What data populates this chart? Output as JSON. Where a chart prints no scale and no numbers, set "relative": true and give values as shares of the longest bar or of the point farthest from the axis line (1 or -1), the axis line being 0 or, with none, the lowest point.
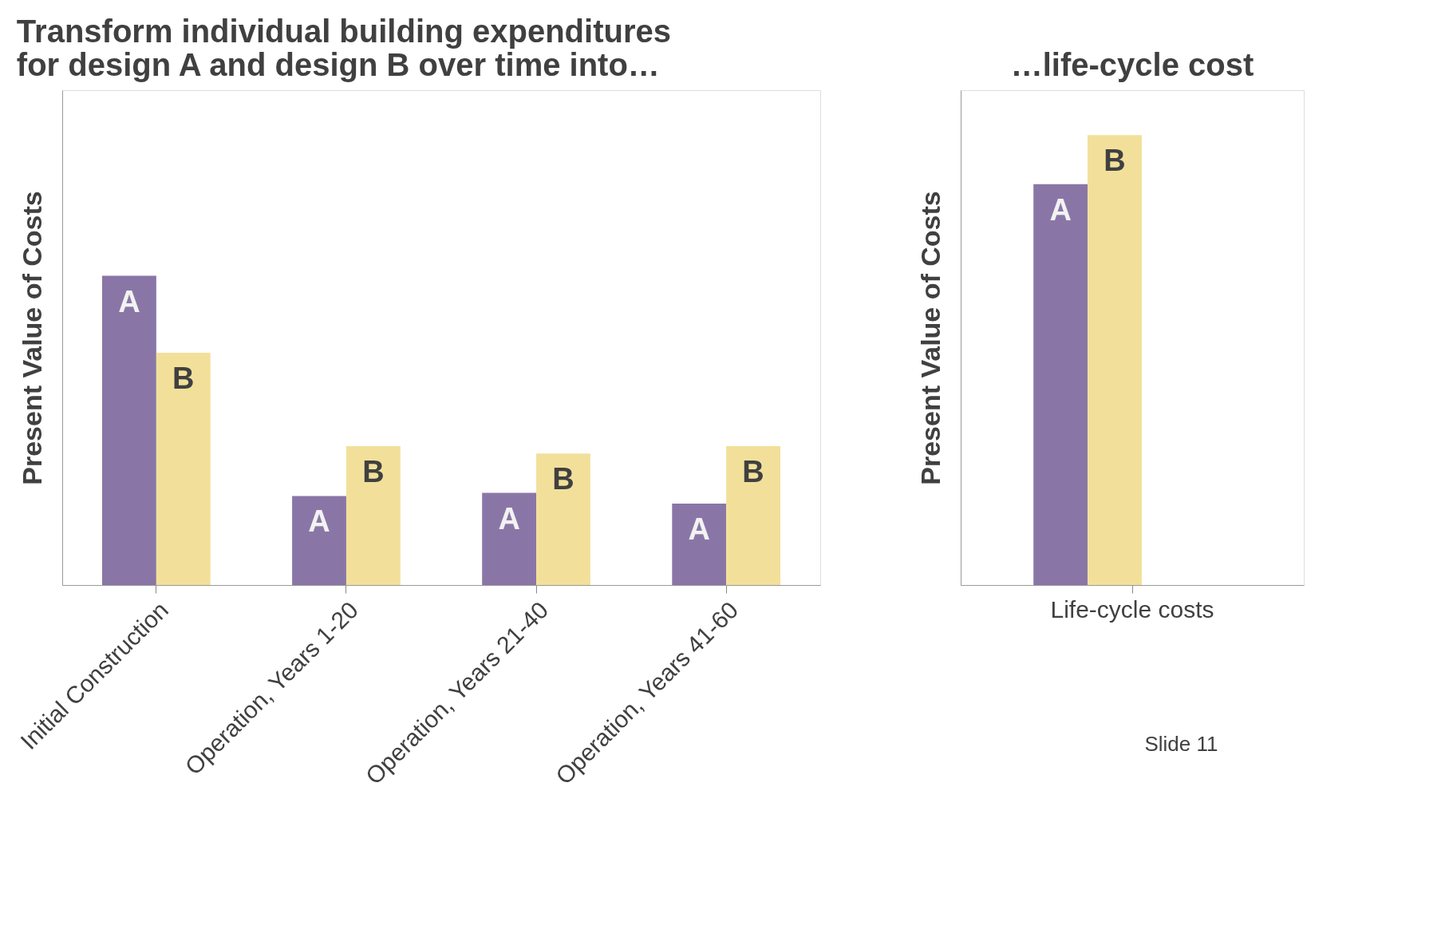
{
  "chart_data": [
    {
      "type": "bar",
      "title": [
        "Transform individual building expenditures",
        "for design A and design B over time into…"
      ],
      "ylabel": "Present Value of Costs",
      "relative": true,
      "categories": [
        "Initial Construction",
        "Operation, Years 1-20",
        "Operation, Years 21-40",
        "Operation, Years 41-60"
      ],
      "series": [
        {
          "name": "A",
          "color": "#8a76a6",
          "values": [
            1.0,
            0.288,
            0.298,
            0.263
          ]
        },
        {
          "name": "B",
          "color": "#f2e09a",
          "values": [
            0.751,
            0.449,
            0.425,
            0.449
          ]
        }
      ],
      "legend": false
    },
    {
      "type": "bar",
      "title": "…life-cycle cost",
      "ylabel": "Present Value of Costs",
      "relative": true,
      "categories": [
        "Life-cycle costs"
      ],
      "series": [
        {
          "name": "A",
          "color": "#8a76a6",
          "values": [
            0.891
          ]
        },
        {
          "name": "B",
          "color": "#f2e09a",
          "values": [
            1.0
          ]
        }
      ],
      "legend": false,
      "annotations": [
        "Slide  11"
      ]
    }
  ]
}
